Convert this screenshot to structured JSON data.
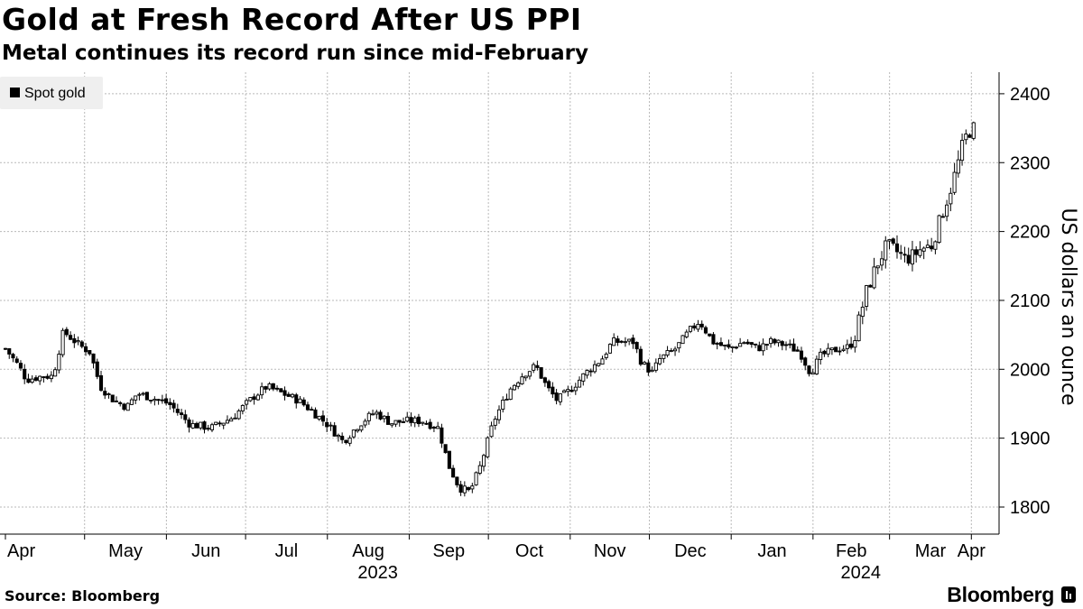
{
  "header": {
    "title": "Gold at Fresh Record After US PPI",
    "subtitle": "Metal continues its record run since mid-February"
  },
  "footer": {
    "source": "Source: Bloomberg",
    "brand": "Bloomberg"
  },
  "colors": {
    "candle": "#000000",
    "grid": "#b9b9b9",
    "axis": "#000000",
    "legend_bg": "#efefef",
    "background": "#ffffff"
  },
  "chart_data": {
    "type": "candlestick",
    "title": "Gold at Fresh Record After US PPI",
    "subtitle": "Metal continues its record run since mid-February",
    "ylabel": "US dollars an ounce",
    "xlabel": "",
    "ylim": [
      1750,
      2440
    ],
    "yticks": [
      1800,
      1900,
      2000,
      2100,
      2200,
      2300,
      2400
    ],
    "grid": true,
    "legend": {
      "position": "top-left",
      "entries": [
        "Spot gold"
      ]
    },
    "x_month_ticks": [
      {
        "label": "Apr",
        "day": 0
      },
      {
        "label": "May",
        "day": 30
      },
      {
        "label": "Jun",
        "day": 61
      },
      {
        "label": "Jul",
        "day": 91
      },
      {
        "label": "Aug",
        "day": 122
      },
      {
        "label": "Sep",
        "day": 153
      },
      {
        "label": "Oct",
        "day": 183
      },
      {
        "label": "Nov",
        "day": 214
      },
      {
        "label": "Dec",
        "day": 244
      },
      {
        "label": "Jan",
        "day": 275
      },
      {
        "label": "Feb",
        "day": 306
      },
      {
        "label": "Mar",
        "day": 335
      },
      {
        "label": "Apr",
        "day": 366
      }
    ],
    "x_year_labels": [
      {
        "label": "2023",
        "day": 137
      },
      {
        "label": "2024",
        "day": 320
      }
    ],
    "x_day_range": [
      0,
      370
    ],
    "anchors": [
      [
        0,
        2030
      ],
      [
        5,
        2005
      ],
      [
        8,
        1985
      ],
      [
        14,
        1990
      ],
      [
        18,
        1990
      ],
      [
        22,
        2055
      ],
      [
        28,
        2035
      ],
      [
        32,
        2025
      ],
      [
        36,
        1975
      ],
      [
        41,
        1955
      ],
      [
        46,
        1945
      ],
      [
        50,
        1965
      ],
      [
        56,
        1958
      ],
      [
        62,
        1950
      ],
      [
        70,
        1920
      ],
      [
        78,
        1915
      ],
      [
        86,
        1930
      ],
      [
        94,
        1960
      ],
      [
        99,
        1975
      ],
      [
        105,
        1965
      ],
      [
        111,
        1955
      ],
      [
        116,
        1940
      ],
      [
        122,
        1920
      ],
      [
        128,
        1895
      ],
      [
        134,
        1920
      ],
      [
        140,
        1938
      ],
      [
        146,
        1922
      ],
      [
        152,
        1925
      ],
      [
        158,
        1925
      ],
      [
        164,
        1915
      ],
      [
        168,
        1860
      ],
      [
        172,
        1828
      ],
      [
        176,
        1822
      ],
      [
        180,
        1860
      ],
      [
        185,
        1925
      ],
      [
        191,
        1970
      ],
      [
        196,
        1992
      ],
      [
        201,
        2005
      ],
      [
        205,
        1975
      ],
      [
        209,
        1955
      ],
      [
        214,
        1970
      ],
      [
        220,
        1995
      ],
      [
        226,
        2015
      ],
      [
        230,
        2040
      ],
      [
        234,
        2040
      ],
      [
        238,
        2040
      ],
      [
        241,
        2010
      ],
      [
        245,
        1995
      ],
      [
        248,
        2015
      ],
      [
        254,
        2030
      ],
      [
        259,
        2055
      ],
      [
        263,
        2070
      ],
      [
        268,
        2040
      ],
      [
        274,
        2030
      ],
      [
        280,
        2040
      ],
      [
        285,
        2030
      ],
      [
        290,
        2040
      ],
      [
        296,
        2035
      ],
      [
        301,
        2025
      ],
      [
        305,
        1995
      ],
      [
        309,
        2020
      ],
      [
        314,
        2028
      ],
      [
        319,
        2032
      ],
      [
        322,
        2050
      ],
      [
        326,
        2110
      ],
      [
        330,
        2150
      ],
      [
        334,
        2180
      ],
      [
        338,
        2170
      ],
      [
        341,
        2160
      ],
      [
        344,
        2165
      ],
      [
        347,
        2175
      ],
      [
        351,
        2180
      ],
      [
        354,
        2215
      ],
      [
        358,
        2260
      ],
      [
        361,
        2300
      ],
      [
        363,
        2330
      ],
      [
        365,
        2345
      ],
      [
        367,
        2350
      ]
    ],
    "trading_day_step": 1.45,
    "last_day": 367
  },
  "chart_data_note": "Estimated from the image: the chart shows daily candles, and these anchor values trace the price path the candles follow."
}
